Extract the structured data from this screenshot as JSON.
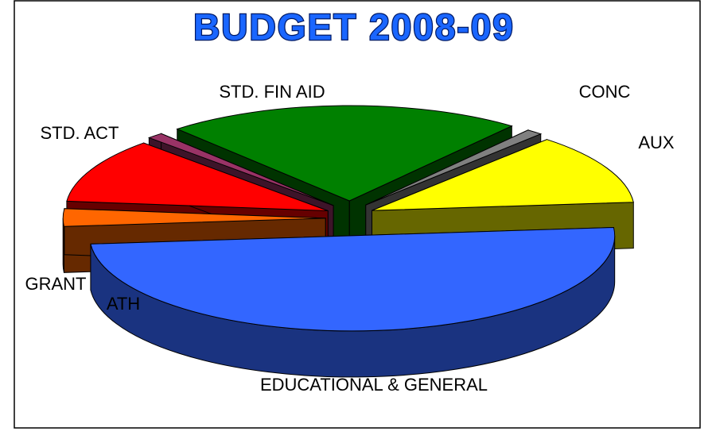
{
  "chart_data": {
    "type": "pie",
    "title": "BUDGET 2008-09",
    "categories": [
      "EDUCATIONAL & GENERAL",
      "ATH",
      "GRANT",
      "STD. ACT",
      "STD. FIN AID",
      "CONC",
      "AUX"
    ],
    "values": [
      50,
      3,
      11,
      1,
      22,
      1,
      12
    ],
    "colors": [
      "#3366ff",
      "#ff6600",
      "#ff0000",
      "#993366",
      "#008000",
      "#808080",
      "#ffff00"
    ]
  }
}
